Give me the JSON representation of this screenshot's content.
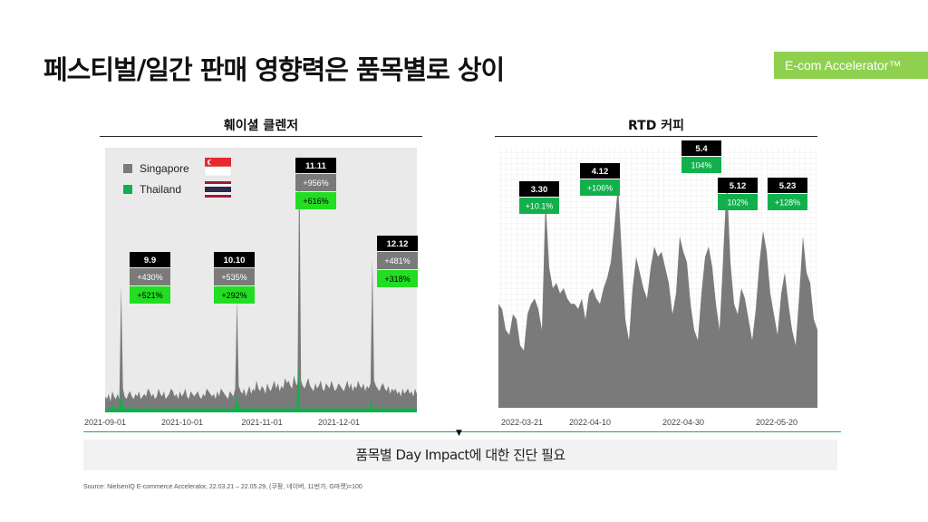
{
  "page": {
    "title": "페스티벌/일간 판매 영향력은 품목별로 상이",
    "brand": "E-com Accelerator™",
    "conclusion": "품목별 Day Impact에 대한 진단 필요",
    "source": "Source: NielsenIQ E-commerce Accelerator, 22.03.21 – 22.05.29, (쿠팡, 네이버, 11번가, G마켓)=100"
  },
  "colors": {
    "gray": "#7a7a7a",
    "green": "#12b04c",
    "bright_green": "#22dd22",
    "accent": "#8fd14f"
  },
  "chart_data": [
    {
      "type": "area",
      "title": "훼이셜 클렌저",
      "x_ticks": [
        "2021-09-01",
        "2021-10-01",
        "2021-11-01",
        "2021-12-01"
      ],
      "legend": [
        {
          "name": "Singapore",
          "color": "#7a7a7a",
          "flag": "sg"
        },
        {
          "name": "Thailand",
          "color": "#12b04c",
          "flag": "th"
        }
      ],
      "ylim": [
        0,
        100
      ],
      "series": [
        {
          "name": "Singapore",
          "values": [
            6,
            5,
            7,
            4,
            8,
            6,
            5,
            7,
            5,
            48,
            9,
            6,
            5,
            7,
            8,
            6,
            5,
            7,
            6,
            8,
            5,
            6,
            7,
            6,
            9,
            8,
            6,
            7,
            5,
            6,
            9,
            7,
            6,
            8,
            5,
            6,
            7,
            9,
            8,
            6,
            7,
            5,
            8,
            6,
            7,
            9,
            6,
            5,
            8,
            7,
            6,
            7,
            8,
            6,
            5,
            7,
            6,
            9,
            8,
            7,
            6,
            7,
            5,
            8,
            6,
            9,
            8,
            7,
            6,
            5,
            8,
            7,
            6,
            9,
            43,
            10,
            8,
            7,
            9,
            6,
            8,
            10,
            7,
            9,
            8,
            12,
            9,
            8,
            10,
            9,
            7,
            11,
            9,
            8,
            10,
            12,
            9,
            11,
            8,
            10,
            9,
            13,
            11,
            12,
            10,
            9,
            14,
            11,
            10,
            99,
            12,
            10,
            9,
            11,
            13,
            10,
            9,
            8,
            11,
            9,
            10,
            12,
            9,
            8,
            11,
            10,
            9,
            12,
            10,
            8,
            9,
            11,
            10,
            9,
            8,
            10,
            12,
            9,
            11,
            8,
            10,
            9,
            12,
            10,
            9,
            11,
            8,
            10,
            9,
            11,
            58,
            12,
            10,
            9,
            8,
            10,
            11,
            9,
            8,
            10,
            7,
            9,
            8,
            9,
            7,
            8,
            6,
            9,
            7,
            8,
            9,
            7,
            8,
            6,
            9,
            7
          ]
        },
        {
          "name": "Thailand",
          "values": [
            2,
            1,
            2,
            1,
            3,
            2,
            1,
            2,
            1,
            8,
            3,
            2,
            1,
            2,
            2,
            1,
            2,
            1,
            2,
            1,
            2,
            1,
            2,
            1,
            2,
            1,
            2,
            1,
            1,
            2,
            1,
            2,
            1,
            2,
            1,
            1,
            2,
            1,
            2,
            1,
            2,
            1,
            2,
            1,
            1,
            2,
            1,
            2,
            1,
            2,
            1,
            2,
            1,
            1,
            2,
            1,
            2,
            1,
            2,
            1,
            2,
            1,
            1,
            2,
            1,
            2,
            1,
            2,
            1,
            1,
            2,
            1,
            2,
            1,
            7,
            3,
            2,
            1,
            2,
            1,
            2,
            1,
            2,
            1,
            2,
            2,
            1,
            2,
            1,
            2,
            1,
            2,
            1,
            2,
            1,
            2,
            1,
            2,
            1,
            2,
            1,
            2,
            1,
            2,
            1,
            2,
            1,
            2,
            1,
            18,
            2,
            1,
            2,
            1,
            2,
            1,
            2,
            1,
            2,
            1,
            2,
            1,
            2,
            1,
            2,
            1,
            2,
            1,
            2,
            1,
            2,
            1,
            2,
            1,
            2,
            1,
            2,
            1,
            2,
            1,
            2,
            1,
            2,
            1,
            2,
            1,
            2,
            1,
            2,
            1,
            5,
            2,
            1,
            2,
            1,
            2,
            1,
            2,
            1,
            2,
            1,
            2,
            1,
            2,
            1,
            2,
            1,
            2,
            1,
            2,
            1,
            2,
            1,
            2,
            1,
            2,
            1
          ]
        }
      ],
      "annotations": [
        {
          "label": "9.9",
          "sg": "+430%",
          "th": "+521%"
        },
        {
          "label": "10.10",
          "sg": "+535%",
          "th": "+292%"
        },
        {
          "label": "11.11",
          "sg": "+956%",
          "th": "+616%"
        },
        {
          "label": "12.12",
          "sg": "+481%",
          "th": "+318%"
        }
      ]
    },
    {
      "type": "area",
      "title": "RTD 커피",
      "x_ticks": [
        "2022-03-21",
        "2022-04-10",
        "2022-04-30",
        "2022-05-20"
      ],
      "ylim": [
        0,
        100
      ],
      "series": [
        {
          "name": "",
          "values": [
            40,
            38,
            30,
            28,
            36,
            34,
            24,
            22,
            36,
            40,
            42,
            38,
            30,
            80,
            54,
            46,
            48,
            44,
            46,
            42,
            40,
            40,
            38,
            42,
            34,
            44,
            46,
            42,
            40,
            46,
            50,
            56,
            70,
            86,
            60,
            34,
            26,
            46,
            58,
            52,
            46,
            42,
            54,
            62,
            58,
            60,
            54,
            48,
            36,
            44,
            66,
            60,
            56,
            40,
            30,
            26,
            44,
            58,
            62,
            54,
            40,
            30,
            58,
            88,
            56,
            40,
            36,
            46,
            42,
            34,
            26,
            38,
            56,
            68,
            60,
            44,
            36,
            28,
            44,
            52,
            40,
            30,
            24,
            44,
            66,
            52,
            48,
            34,
            30
          ]
        }
      ],
      "annotations": [
        {
          "label": "3.30",
          "value": "+10.1%"
        },
        {
          "label": "4.12",
          "value": "+106%"
        },
        {
          "label": "5.4",
          "value": "104%"
        },
        {
          "label": "5.12",
          "value": "102%"
        },
        {
          "label": "5.23",
          "value": "+128%"
        }
      ]
    }
  ]
}
